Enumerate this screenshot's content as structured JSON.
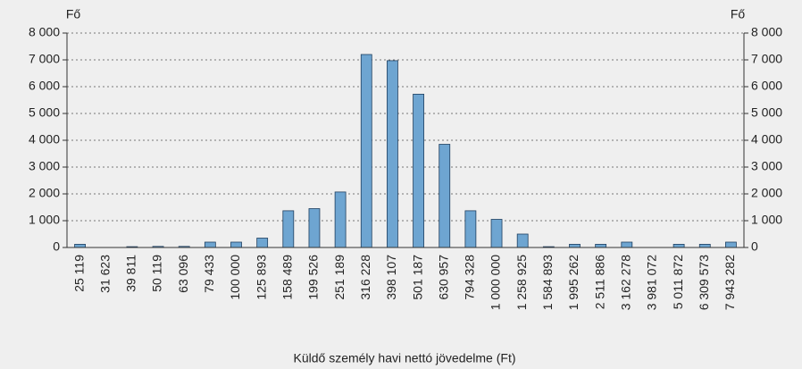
{
  "chart_data": {
    "type": "bar",
    "ylabel": "Fő",
    "y2label": "Fő",
    "xlabel": "Küldő személy havi nettó jövedelme (Ft)",
    "categories": [
      "25 119",
      "31 623",
      "39 811",
      "50 119",
      "63 096",
      "79 433",
      "100 000",
      "125 893",
      "158 489",
      "199 526",
      "251 189",
      "316 228",
      "398 107",
      "501 187",
      "630 957",
      "794 328",
      "1 000 000",
      "1 258 925",
      "1 584 893",
      "1 995 262",
      "2 511 886",
      "3 162 278",
      "3 981 072",
      "5 011 872",
      "6 309 573",
      "7 943 282"
    ],
    "values": [
      120,
      0,
      30,
      40,
      40,
      200,
      200,
      350,
      1370,
      1450,
      2070,
      7200,
      6970,
      5720,
      3850,
      1370,
      1050,
      500,
      30,
      120,
      120,
      200,
      0,
      120,
      120,
      200
    ],
    "color": "#6ea5d1",
    "ylim": [
      0,
      8000
    ],
    "yticks": [
      0,
      {
        "value": 1000,
        "label": "1 000"
      },
      {
        "value": 2000,
        "label": "2 000"
      },
      {
        "value": 3000,
        "label": "3 000"
      },
      {
        "value": 4000,
        "label": "4 000"
      },
      {
        "value": 5000,
        "label": "5 000"
      },
      {
        "value": 6000,
        "label": "6 000"
      },
      {
        "value": 7000,
        "label": "7 000"
      },
      {
        "value": 8000,
        "label": "8 000"
      }
    ],
    "y2lim": [
      0,
      8000
    ],
    "y2ticks": [
      0,
      {
        "value": 1000,
        "label": "1 000"
      },
      {
        "value": 2000,
        "label": "2 000"
      },
      {
        "value": 3000,
        "label": "3 000"
      },
      {
        "value": 4000,
        "label": "4 000"
      },
      {
        "value": 5000,
        "label": "5 000"
      },
      {
        "value": 6000,
        "label": "6 000"
      },
      {
        "value": 7000,
        "label": "7 000"
      },
      {
        "value": 8000,
        "label": "8 000"
      }
    ],
    "grid": true
  }
}
